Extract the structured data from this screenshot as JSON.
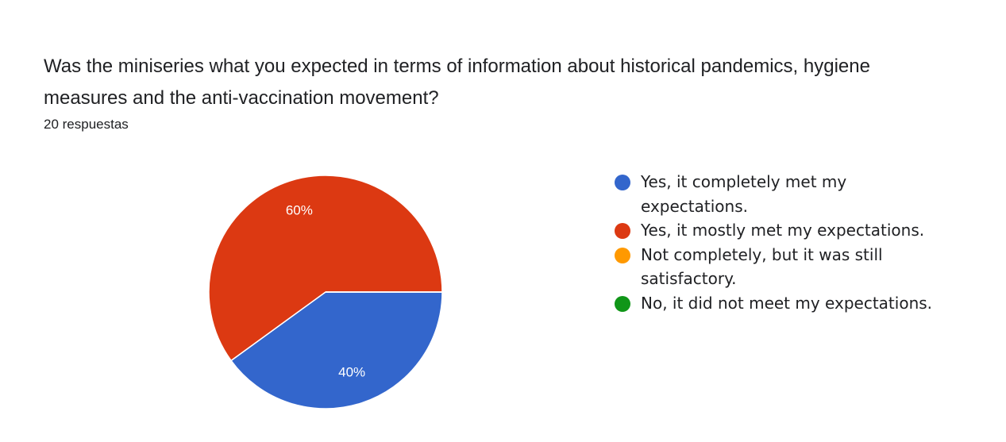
{
  "chart_data": {
    "type": "pie",
    "title": "Was the miniseries what you expected in terms of information about historical pandemics, hygiene measures and the anti-vaccination movement?",
    "subtitle": "20 respuestas",
    "categories": [
      "Yes, it completely met my expectations.",
      "Yes, it mostly met my expectations.",
      "Not completely, but it was still satisfactory.",
      "No, it did not meet my expectations."
    ],
    "values": [
      40,
      60,
      0,
      0
    ],
    "value_labels": [
      "40%",
      "60%",
      null,
      null
    ],
    "colors": [
      "#3366cc",
      "#dc3912",
      "#ff9900",
      "#109618"
    ],
    "legend": "right"
  }
}
